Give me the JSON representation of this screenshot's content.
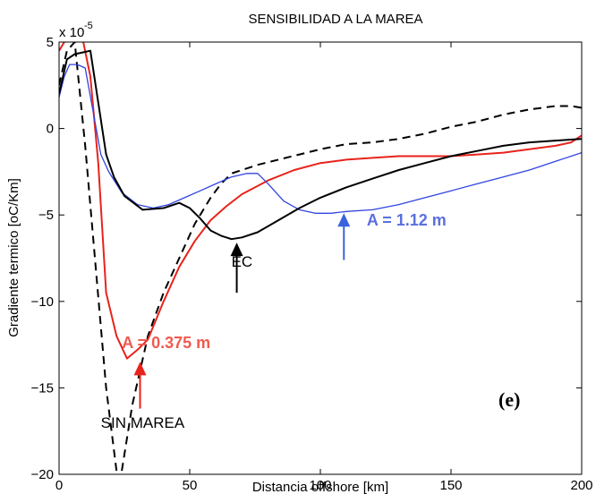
{
  "chart_data": {
    "type": "line",
    "title": "SENSIBILIDAD A LA MAREA",
    "xlabel": "Distancia offshore [km]",
    "ylabel": "Gradiente termico [oC/Km]",
    "scale_factor_label": "x 10",
    "scale_factor_exponent": "-5",
    "xlim": [
      0,
      200
    ],
    "ylim": [
      -20,
      5
    ],
    "xticks": [
      0,
      50,
      100,
      150,
      200
    ],
    "yticks": [
      5,
      0,
      -5,
      -10,
      -15,
      -20
    ],
    "xtick_labels": [
      "0",
      "50",
      "100",
      "150",
      "200"
    ],
    "ytick_labels": [
      "5",
      "0",
      "−5",
      "−10",
      "−15",
      "−20"
    ],
    "grid": false,
    "panel_label": "(e)",
    "series": [
      {
        "color": "#000000",
        "style": "dashed",
        "x": [
          0,
          3,
          6,
          10,
          14,
          18,
          22,
          24,
          28,
          34,
          40,
          46,
          52,
          58,
          62,
          66,
          70,
          76,
          84,
          92,
          100,
          110,
          120,
          130,
          140,
          150,
          160,
          170,
          180,
          190,
          196,
          200
        ],
        "y": [
          2.5,
          4.5,
          5.0,
          -1.0,
          -8.0,
          -15.0,
          -19.8,
          -19.8,
          -16.0,
          -12.0,
          -9.5,
          -7.5,
          -5.5,
          -4.0,
          -3.2,
          -2.6,
          -2.4,
          -2.1,
          -1.8,
          -1.5,
          -1.2,
          -0.9,
          -0.8,
          -0.6,
          -0.3,
          0.1,
          0.4,
          0.8,
          1.1,
          1.3,
          1.3,
          1.2
        ]
      },
      {
        "color": "#e8231c",
        "style": "solid",
        "x": [
          0,
          2,
          5,
          9,
          12,
          15,
          18,
          22,
          26,
          30,
          34,
          40,
          46,
          52,
          58,
          64,
          70,
          80,
          90,
          100,
          110,
          120,
          130,
          140,
          150,
          160,
          170,
          180,
          190,
          196,
          200
        ],
        "y": [
          4.5,
          5.0,
          5.2,
          5.2,
          3.0,
          -2.0,
          -9.5,
          -12.0,
          -13.3,
          -12.8,
          -12.2,
          -10.0,
          -8.0,
          -6.5,
          -5.3,
          -4.5,
          -3.8,
          -3.0,
          -2.4,
          -2.0,
          -1.8,
          -1.7,
          -1.6,
          -1.6,
          -1.6,
          -1.5,
          -1.4,
          -1.2,
          -1.0,
          -0.8,
          -0.4
        ]
      },
      {
        "color": "#3044e0",
        "style": "solid",
        "x": [
          0,
          2,
          4,
          7,
          10,
          13,
          16,
          19,
          24,
          30,
          36,
          42,
          48,
          54,
          60,
          66,
          72,
          76,
          80,
          86,
          92,
          98,
          104,
          110,
          120,
          130,
          140,
          150,
          160,
          170,
          180,
          190,
          200
        ],
        "y": [
          1.8,
          3.0,
          3.7,
          3.7,
          3.5,
          1.0,
          -1.5,
          -2.5,
          -3.7,
          -4.4,
          -4.6,
          -4.4,
          -4.0,
          -3.6,
          -3.2,
          -2.8,
          -2.6,
          -2.6,
          -3.2,
          -4.2,
          -4.7,
          -4.9,
          -4.9,
          -4.8,
          -4.7,
          -4.4,
          -4.0,
          -3.6,
          -3.2,
          -2.8,
          -2.4,
          -1.9,
          -1.4
        ]
      },
      {
        "color": "#000000",
        "style": "solid",
        "x": [
          0,
          3,
          6,
          9,
          12,
          15,
          18,
          21,
          25,
          32,
          40,
          46,
          50,
          54,
          58,
          62,
          66,
          70,
          76,
          84,
          92,
          100,
          110,
          120,
          130,
          140,
          150,
          160,
          170,
          180,
          190,
          200
        ],
        "y": [
          2.0,
          4.0,
          4.3,
          4.4,
          4.5,
          1.5,
          -1.5,
          -2.8,
          -3.9,
          -4.7,
          -4.6,
          -4.3,
          -4.6,
          -5.2,
          -5.9,
          -6.2,
          -6.4,
          -6.3,
          -6.0,
          -5.3,
          -4.6,
          -4.0,
          -3.4,
          -2.9,
          -2.4,
          -2.0,
          -1.6,
          -1.3,
          -1.0,
          -0.8,
          -0.7,
          -0.6
        ]
      }
    ],
    "annotations": [
      {
        "text": "SIN MAREA",
        "color": "#000000",
        "weight": "normal",
        "at": [
          32,
          -17.3
        ]
      },
      {
        "text": "A = 0.375 m",
        "color": "#f05a4f",
        "weight": "bold",
        "at": [
          41,
          -12.7
        ]
      },
      {
        "text": "EC",
        "color": "#000000",
        "weight": "normal",
        "at": [
          70,
          -8.0
        ]
      },
      {
        "text": "A = 1.12 m",
        "color": "#5a6fe0",
        "weight": "bold",
        "at": [
          133,
          -5.6
        ]
      }
    ],
    "arrows": [
      {
        "color": "#e8231c",
        "tail": [
          31,
          -16.2
        ],
        "head": [
          31,
          -13.5
        ]
      },
      {
        "color": "#000000",
        "tail": [
          68,
          -9.5
        ],
        "head": [
          68,
          -6.6
        ]
      },
      {
        "color": "#3b63e0",
        "tail": [
          109,
          -7.6
        ],
        "head": [
          109,
          -4.9
        ]
      }
    ]
  }
}
